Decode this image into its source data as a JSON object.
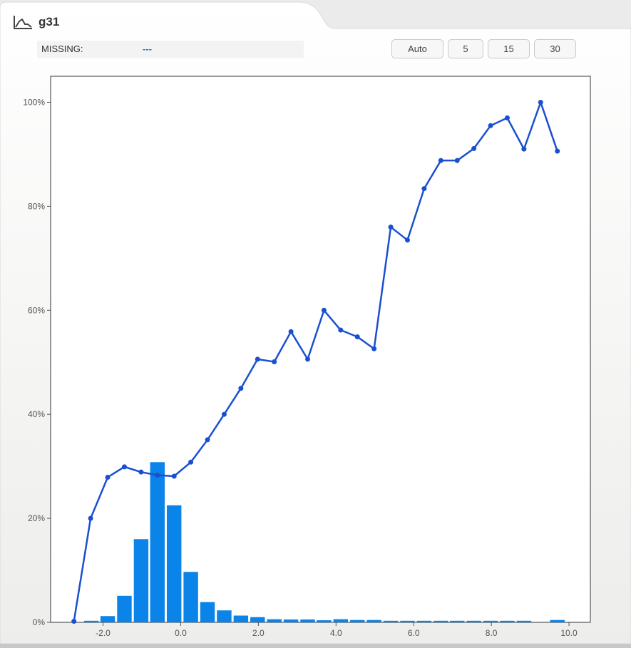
{
  "header": {
    "title": "g31",
    "icon": "line-chart-icon"
  },
  "missing": {
    "label": "MISSING:",
    "value": "---"
  },
  "bin_buttons": [
    "Auto",
    "5",
    "15",
    "30"
  ],
  "colors": {
    "line": "#1a50d0",
    "bar": "#0a84e8",
    "accent": "#1a75d1"
  },
  "chart_data": {
    "type": "bar",
    "title": "",
    "xlabel": "",
    "ylabel": "",
    "xlim": [
      -3.35,
      10.55
    ],
    "ylim": [
      0,
      105
    ],
    "x_ticks": [
      -2.0,
      0.0,
      2.0,
      4.0,
      6.0,
      8.0,
      10.0
    ],
    "x_tick_labels": [
      "-2.0",
      "0.0",
      "2.0",
      "4.0",
      "6.0",
      "8.0",
      "10.0"
    ],
    "y_ticks": [
      0,
      20,
      40,
      60,
      80,
      100
    ],
    "y_tick_labels": [
      "0%",
      "20%",
      "40%",
      "60%",
      "80%",
      "100%"
    ],
    "grid": false,
    "series": [
      {
        "type": "bar",
        "x": [
          -2.3,
          -1.88,
          -1.45,
          -1.02,
          -0.6,
          -0.17,
          0.26,
          0.69,
          1.12,
          1.55,
          1.98,
          2.41,
          2.84,
          3.27,
          3.69,
          4.12,
          4.55,
          4.98,
          5.41,
          5.84,
          6.27,
          6.7,
          7.12,
          7.55,
          7.98,
          8.41,
          8.84,
          9.7
        ],
        "y": [
          0.3,
          1.2,
          5.1,
          16.0,
          30.8,
          22.5,
          9.7,
          3.9,
          2.3,
          1.3,
          1.0,
          0.6,
          0.55,
          0.55,
          0.4,
          0.6,
          0.45,
          0.45,
          0.3,
          0.3,
          0.3,
          0.3,
          0.3,
          0.3,
          0.3,
          0.3,
          0.3,
          0.45
        ]
      },
      {
        "type": "line",
        "x": [
          -2.75,
          -2.32,
          -1.88,
          -1.45,
          -1.02,
          -0.6,
          -0.17,
          0.26,
          0.69,
          1.12,
          1.55,
          1.98,
          2.41,
          2.84,
          3.27,
          3.69,
          4.12,
          4.55,
          4.98,
          5.41,
          5.84,
          6.27,
          6.7,
          7.12,
          7.55,
          7.98,
          8.41,
          8.84,
          9.27,
          9.7
        ],
        "y": [
          0.2,
          20.0,
          27.9,
          29.9,
          28.9,
          28.3,
          28.1,
          30.8,
          35.1,
          40.0,
          45.0,
          50.6,
          50.1,
          55.9,
          50.6,
          60.0,
          56.2,
          54.9,
          52.6,
          76.0,
          73.5,
          83.4,
          88.8,
          88.8,
          91.1,
          95.5,
          97.0,
          91.0,
          100.0,
          90.6
        ]
      }
    ]
  }
}
